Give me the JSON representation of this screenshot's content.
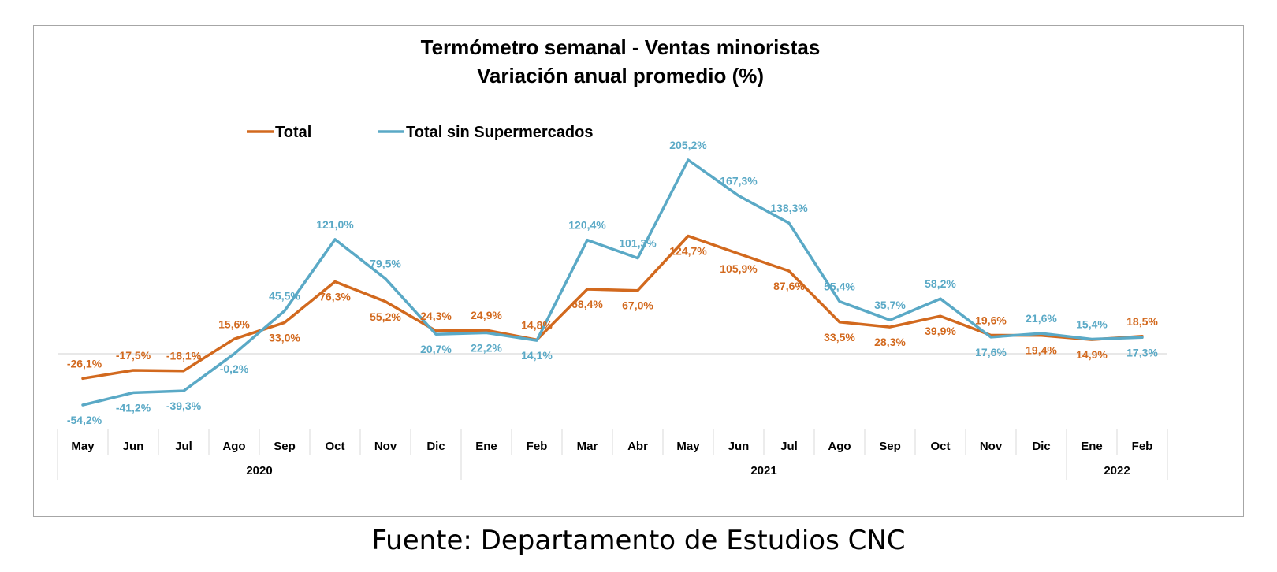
{
  "chart_data": {
    "type": "line",
    "title": [
      "Termómetro semanal - Ventas minoristas",
      "Variación anual promedio (%)"
    ],
    "categories": [
      "May",
      "Jun",
      "Jul",
      "Ago",
      "Sep",
      "Oct",
      "Nov",
      "Dic",
      "Ene",
      "Feb",
      "Mar",
      "Abr",
      "May",
      "Jun",
      "Jul",
      "Ago",
      "Sep",
      "Oct",
      "Nov",
      "Dic",
      "Ene",
      "Feb"
    ],
    "years": [
      {
        "label": "2020",
        "from": 0,
        "to": 7
      },
      {
        "label": "2021",
        "from": 8,
        "to": 19
      },
      {
        "label": "2022",
        "from": 20,
        "to": 21
      }
    ],
    "series": [
      {
        "name": "Total",
        "color": "#d2691e",
        "values": [
          -26.1,
          -17.5,
          -18.1,
          15.6,
          33.0,
          76.3,
          55.2,
          24.3,
          24.9,
          14.8,
          68.4,
          67.0,
          124.7,
          105.9,
          87.6,
          33.5,
          28.3,
          39.9,
          19.6,
          19.4,
          14.9,
          18.5
        ],
        "labels": [
          "-26,1%",
          "-17,5%",
          "-18,1%",
          "15,6%",
          "33,0%",
          "76,3%",
          "55,2%",
          "24,3%",
          "24,9%",
          "14,8%",
          "68,4%",
          "67,0%",
          "124,7%",
          "105,9%",
          "87,6%",
          "33,5%",
          "28,3%",
          "39,9%",
          "19,6%",
          "19,4%",
          "14,9%",
          "18,5%"
        ]
      },
      {
        "name": "Total sin Supermercados",
        "color": "#5aa9c6",
        "values": [
          -54.2,
          -41.2,
          -39.3,
          -0.2,
          45.5,
          121.0,
          79.5,
          20.7,
          22.2,
          14.1,
          120.4,
          101.3,
          205.2,
          167.3,
          138.3,
          55.4,
          35.7,
          58.2,
          17.6,
          21.6,
          15.4,
          17.3
        ],
        "labels": [
          "-54,2%",
          "-41,2%",
          "-39,3%",
          "-0,2%",
          "45,5%",
          "121,0%",
          "79,5%",
          "20,7%",
          "22,2%",
          "14,1%",
          "120,4%",
          "101,3%",
          "205,2%",
          "167,3%",
          "138,3%",
          "55,4%",
          "35,7%",
          "58,2%",
          "17,6%",
          "21,6%",
          "15,4%",
          "17,3%"
        ]
      }
    ],
    "legend_position": "top-left",
    "ylim": [
      -60,
      210
    ],
    "grid": false
  },
  "source": "Fuente: Departamento de Estudios CNC"
}
